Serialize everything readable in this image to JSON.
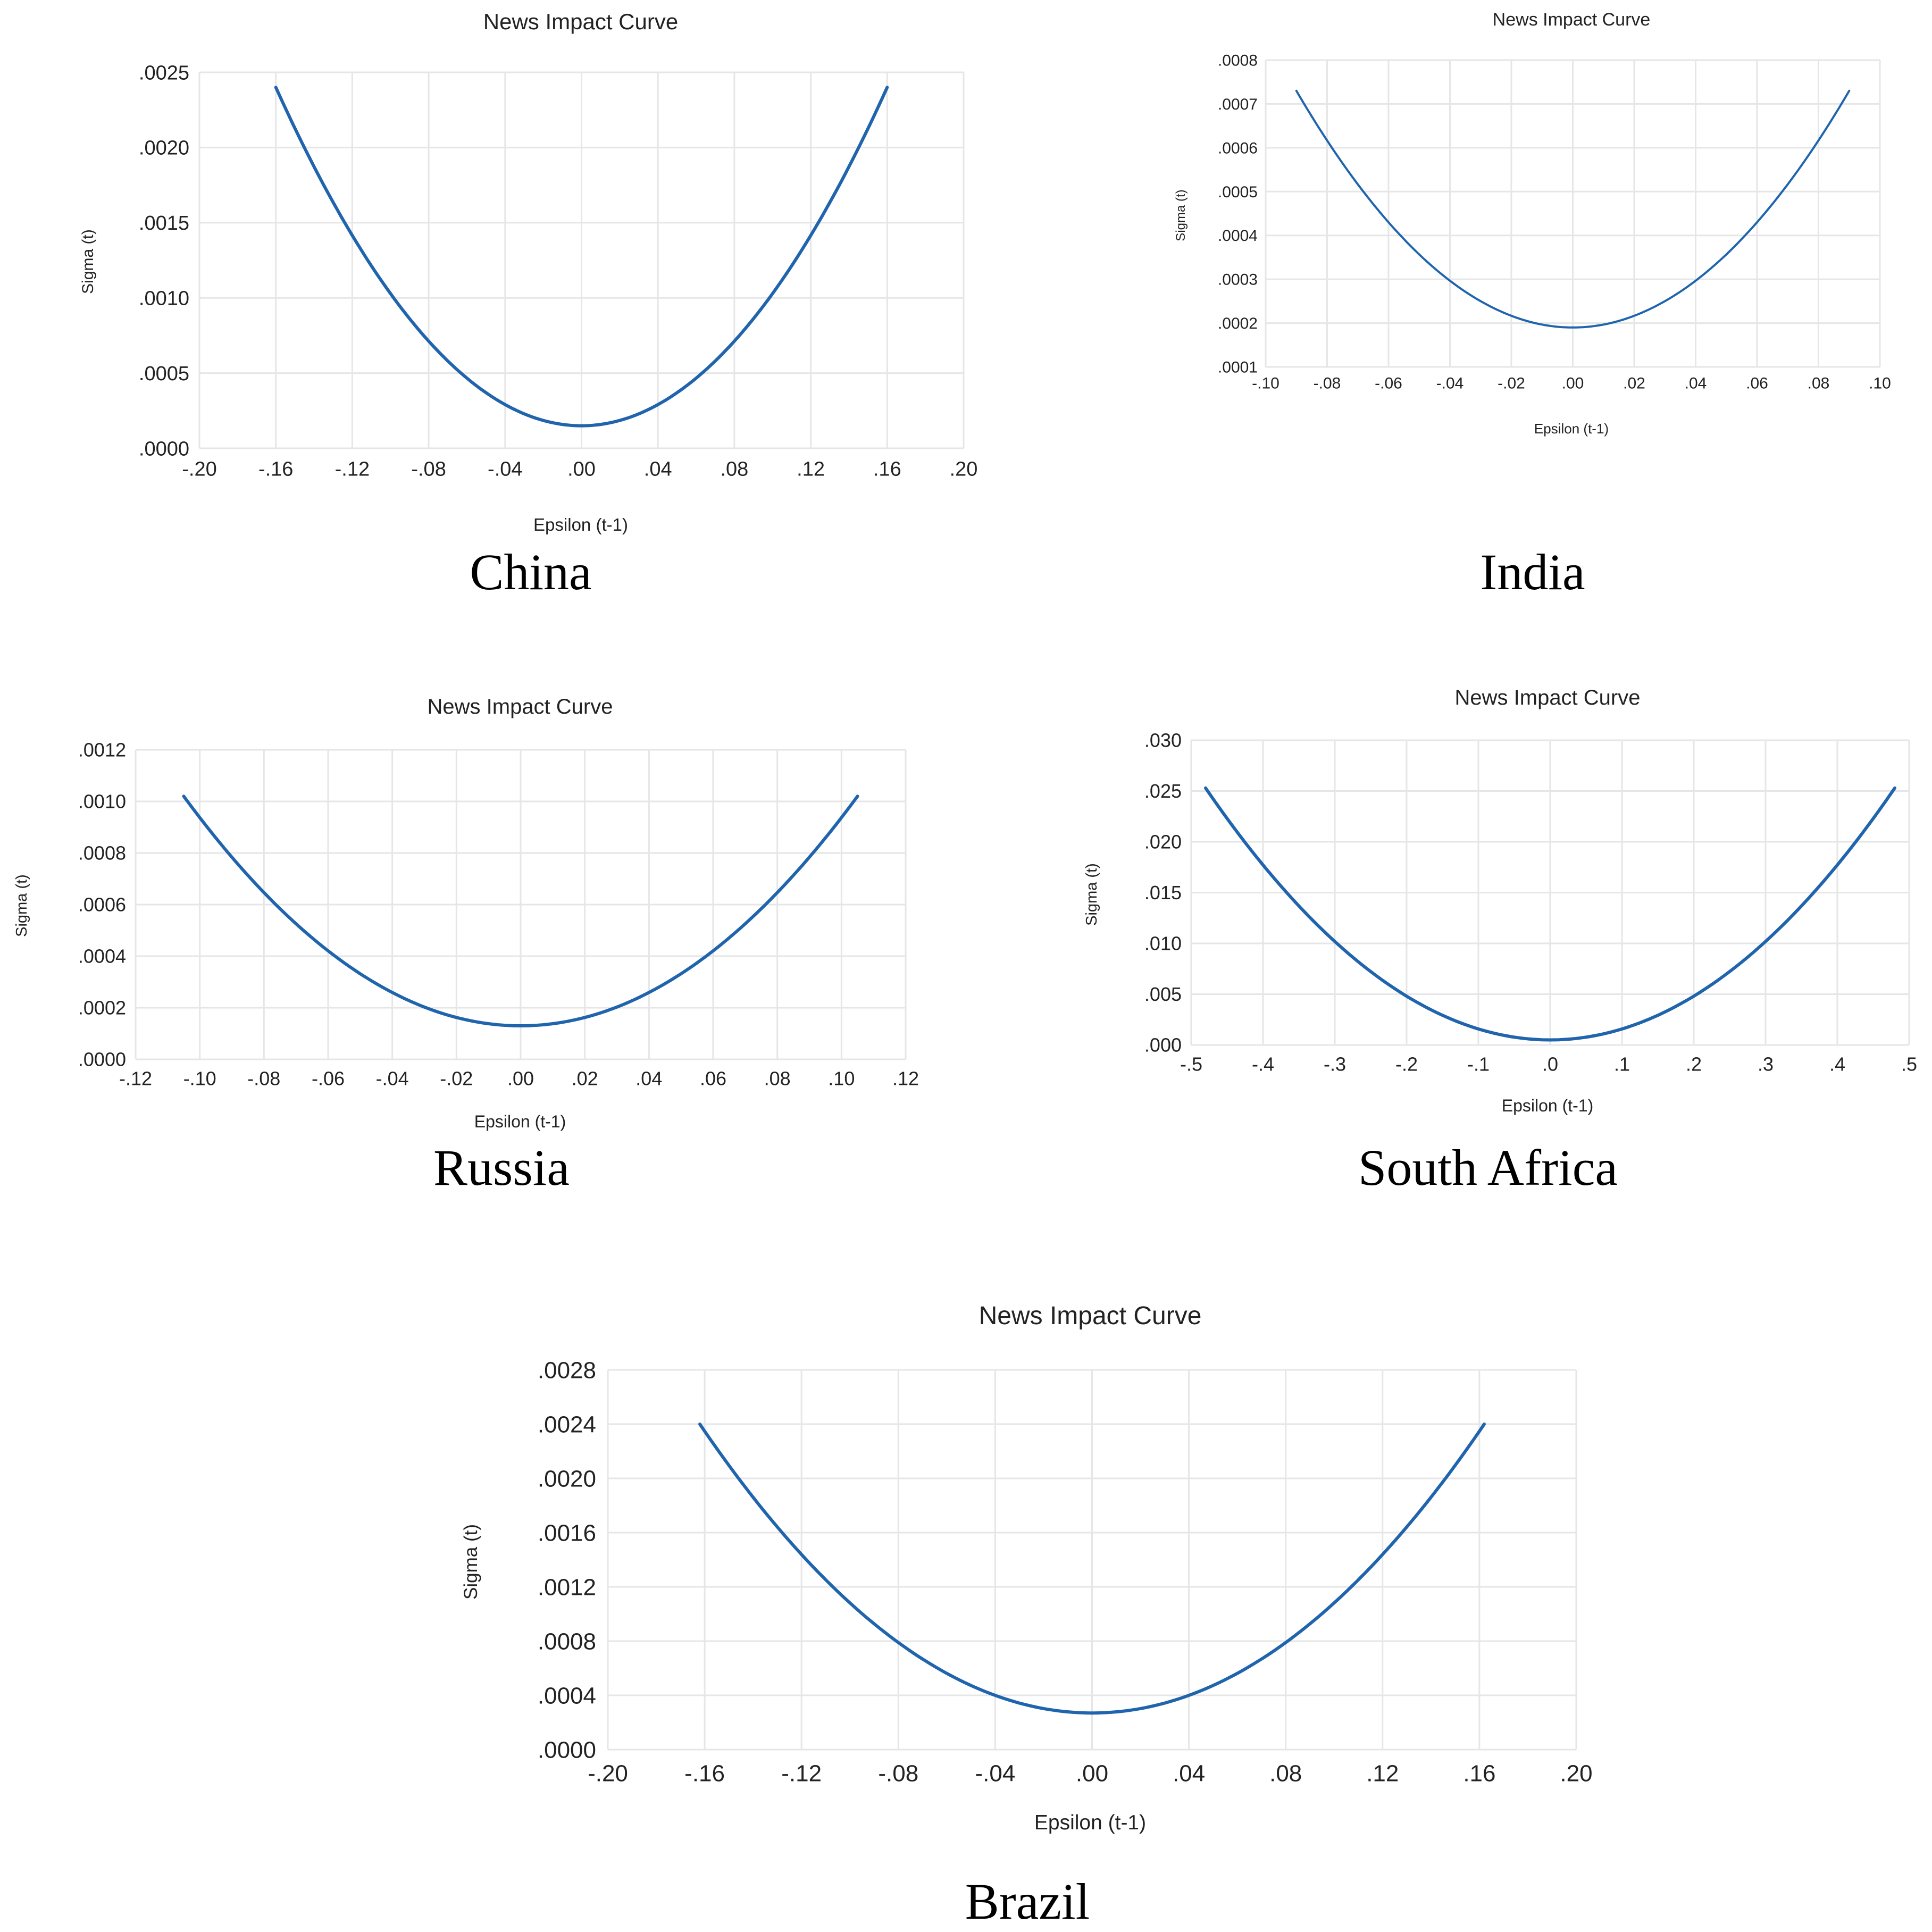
{
  "colors": {
    "line": "#1f64ad",
    "grid": "#e6e6e6",
    "text": "#222222"
  },
  "chart_data": [
    {
      "id": "china",
      "type": "line",
      "title": "News Impact Curve",
      "caption": "China",
      "xlabel": "Epsilon (t-1)",
      "ylabel": "Sigma (t)",
      "xlim": [
        -0.2,
        0.2
      ],
      "ylim": [
        0.0,
        0.0025
      ],
      "xticks": [
        -0.2,
        -0.16,
        -0.12,
        -0.08,
        -0.04,
        0.0,
        0.04,
        0.08,
        0.12,
        0.16,
        0.2
      ],
      "xtick_labels": [
        "-.20",
        "-.16",
        "-.12",
        "-.08",
        "-.04",
        ".00",
        ".04",
        ".08",
        ".12",
        ".16",
        ".20"
      ],
      "yticks": [
        0.0,
        0.0005,
        0.001,
        0.0015,
        0.002,
        0.0025
      ],
      "ytick_labels": [
        ".0000",
        ".0005",
        ".0010",
        ".0015",
        ".0020",
        ".0025"
      ],
      "grid": true,
      "series": [
        {
          "curve": "quadratic",
          "x_range": [
            -0.16,
            0.16
          ],
          "vertex": 0.00015,
          "end_value": 0.0024
        }
      ]
    },
    {
      "id": "india",
      "type": "line",
      "title": "News Impact Curve",
      "caption": "India",
      "xlabel": "Epsilon (t-1)",
      "ylabel": "Sigma (t)",
      "xlim": [
        -0.1,
        0.1
      ],
      "ylim": [
        0.0001,
        0.0008
      ],
      "xticks": [
        -0.1,
        -0.08,
        -0.06,
        -0.04,
        -0.02,
        0.0,
        0.02,
        0.04,
        0.06,
        0.08,
        0.1
      ],
      "xtick_labels": [
        "-.10",
        "-.08",
        "-.06",
        "-.04",
        "-.02",
        ".00",
        ".02",
        ".04",
        ".06",
        ".08",
        ".10"
      ],
      "yticks": [
        0.0001,
        0.0002,
        0.0003,
        0.0004,
        0.0005,
        0.0006,
        0.0007,
        0.0008
      ],
      "ytick_labels": [
        ".0001",
        ".0002",
        ".0003",
        ".0004",
        ".0005",
        ".0006",
        ".0007",
        ".0008"
      ],
      "grid": true,
      "series": [
        {
          "curve": "quadratic",
          "x_range": [
            -0.09,
            0.09
          ],
          "vertex": 0.00019,
          "end_value": 0.00073
        }
      ]
    },
    {
      "id": "russia",
      "type": "line",
      "title": "News Impact Curve",
      "caption": "Russia",
      "xlabel": "Epsilon (t-1)",
      "ylabel": "Sigma (t)",
      "xlim": [
        -0.12,
        0.12
      ],
      "ylim": [
        0.0,
        0.0012
      ],
      "xticks": [
        -0.12,
        -0.1,
        -0.08,
        -0.06,
        -0.04,
        -0.02,
        0.0,
        0.02,
        0.04,
        0.06,
        0.08,
        0.1,
        0.12
      ],
      "xtick_labels": [
        "-.12",
        "-.10",
        "-.08",
        "-.06",
        "-.04",
        "-.02",
        ".00",
        ".02",
        ".04",
        ".06",
        ".08",
        ".10",
        ".12"
      ],
      "yticks": [
        0.0,
        0.0002,
        0.0004,
        0.0006,
        0.0008,
        0.001,
        0.0012
      ],
      "ytick_labels": [
        ".0000",
        ".0002",
        ".0004",
        ".0006",
        ".0008",
        ".0010",
        ".0012"
      ],
      "grid": true,
      "series": [
        {
          "curve": "quadratic",
          "x_range": [
            -0.105,
            0.105
          ],
          "vertex": 0.00013,
          "end_value": 0.00102
        }
      ]
    },
    {
      "id": "south-africa",
      "type": "line",
      "title": "News Impact Curve",
      "caption": "South Africa",
      "xlabel": "Epsilon (t-1)",
      "ylabel": "Sigma (t)",
      "xlim": [
        -0.5,
        0.5
      ],
      "ylim": [
        0.0,
        0.03
      ],
      "xticks": [
        -0.5,
        -0.4,
        -0.3,
        -0.2,
        -0.1,
        0.0,
        0.1,
        0.2,
        0.3,
        0.4,
        0.5
      ],
      "xtick_labels": [
        "-.5",
        "-.4",
        "-.3",
        "-.2",
        "-.1",
        ".0",
        ".1",
        ".2",
        ".3",
        ".4",
        ".5"
      ],
      "yticks": [
        0.0,
        0.005,
        0.01,
        0.015,
        0.02,
        0.025,
        0.03
      ],
      "ytick_labels": [
        ".000",
        ".005",
        ".010",
        ".015",
        ".020",
        ".025",
        ".030"
      ],
      "grid": true,
      "series": [
        {
          "curve": "quadratic",
          "x_range": [
            -0.48,
            0.48
          ],
          "vertex": 0.0005,
          "end_value": 0.0253
        }
      ]
    },
    {
      "id": "brazil",
      "type": "line",
      "title": "News Impact Curve",
      "caption": "Brazil",
      "xlabel": "Epsilon (t-1)",
      "ylabel": "Sigma (t)",
      "xlim": [
        -0.2,
        0.2
      ],
      "ylim": [
        0.0,
        0.0028
      ],
      "xticks": [
        -0.2,
        -0.16,
        -0.12,
        -0.08,
        -0.04,
        0.0,
        0.04,
        0.08,
        0.12,
        0.16,
        0.2
      ],
      "xtick_labels": [
        "-.20",
        "-.16",
        "-.12",
        "-.08",
        "-.04",
        ".00",
        ".04",
        ".08",
        ".12",
        ".16",
        ".20"
      ],
      "yticks": [
        0.0,
        0.0004,
        0.0008,
        0.0012,
        0.0016,
        0.002,
        0.0024,
        0.0028
      ],
      "ytick_labels": [
        ".0000",
        ".0004",
        ".0008",
        ".0012",
        ".0016",
        ".0020",
        ".0024",
        ".0028"
      ],
      "grid": true,
      "series": [
        {
          "curve": "quadratic",
          "x_range": [
            -0.162,
            0.162
          ],
          "vertex": 0.00027,
          "end_value": 0.0024
        }
      ]
    }
  ]
}
